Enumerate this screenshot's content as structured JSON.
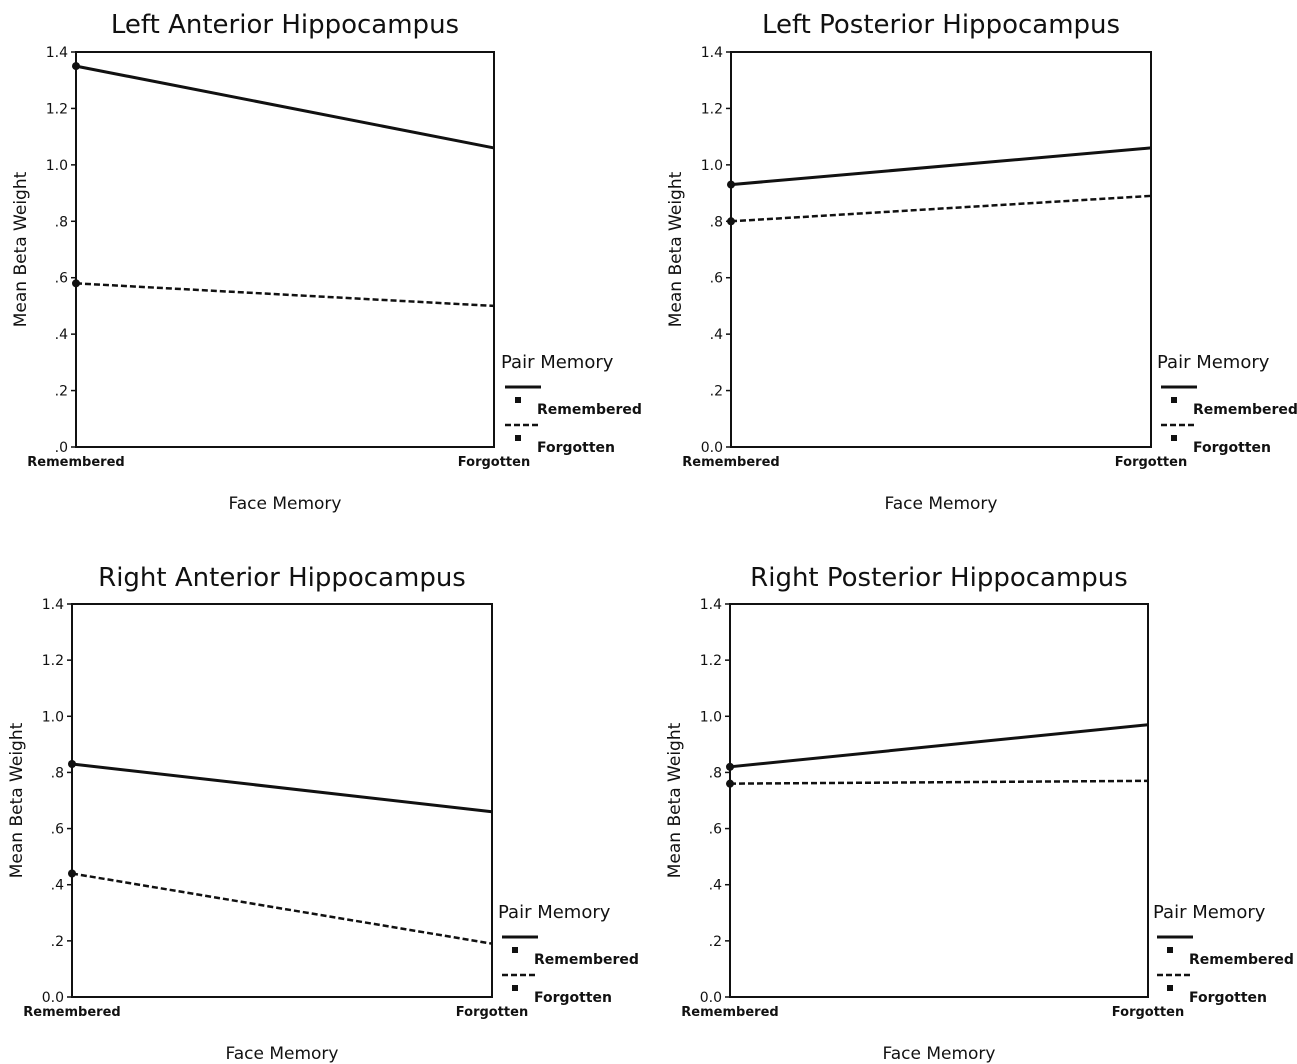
{
  "chart_data": [
    {
      "type": "line",
      "title": "Left Anterior Hippocampus",
      "xlabel": "Face Memory",
      "ylabel": "Mean Beta Weight",
      "categories": [
        "Remembered",
        "Forgotten"
      ],
      "ylim": [
        0,
        1.4
      ],
      "yticks": [
        ".0",
        ".2",
        ".4",
        ".6",
        ".8",
        "1.0",
        "1.2",
        "1.4"
      ],
      "series": [
        {
          "name": "Remembered",
          "values": [
            1.35,
            1.06
          ]
        },
        {
          "name": "Forgotten",
          "values": [
            0.58,
            0.5
          ]
        }
      ],
      "legend": {
        "title": "Pair Memory",
        "position": "right"
      }
    },
    {
      "type": "line",
      "title": "Left Posterior Hippocampus",
      "xlabel": "Face Memory",
      "ylabel": "Mean Beta Weight",
      "categories": [
        "Remembered",
        "Forgotten"
      ],
      "ylim": [
        0,
        1.4
      ],
      "yticks": [
        "0.0",
        ".2",
        ".4",
        ".6",
        ".8",
        "1.0",
        "1.2",
        "1.4"
      ],
      "series": [
        {
          "name": "Remembered",
          "values": [
            0.93,
            1.06
          ]
        },
        {
          "name": "Forgotten",
          "values": [
            0.8,
            0.89
          ]
        }
      ],
      "legend": {
        "title": "Pair Memory",
        "position": "right"
      }
    },
    {
      "type": "line",
      "title": "Right Anterior Hippocampus",
      "xlabel": "Face Memory",
      "ylabel": "Mean Beta Weight",
      "categories": [
        "Remembered",
        "Forgotten"
      ],
      "ylim": [
        0,
        1.4
      ],
      "yticks": [
        "0.0",
        ".2",
        ".4",
        ".6",
        ".8",
        "1.0",
        "1.2",
        "1.4"
      ],
      "series": [
        {
          "name": "Remembered",
          "values": [
            0.83,
            0.66
          ]
        },
        {
          "name": "Forgotten",
          "values": [
            0.44,
            0.19
          ]
        }
      ],
      "legend": {
        "title": "Pair Memory",
        "position": "right"
      }
    },
    {
      "type": "line",
      "title": "Right Posterior Hippocampus",
      "xlabel": "Face Memory",
      "ylabel": "Mean Beta Weight",
      "categories": [
        "Remembered",
        "Forgotten"
      ],
      "ylim": [
        0,
        1.4
      ],
      "yticks": [
        "0.0",
        ".2",
        ".4",
        ".6",
        ".8",
        "1.0",
        "1.2",
        "1.4"
      ],
      "series": [
        {
          "name": "Remembered",
          "values": [
            0.82,
            0.97
          ]
        },
        {
          "name": "Forgotten",
          "values": [
            0.76,
            0.77
          ]
        }
      ],
      "legend": {
        "title": "Pair Memory",
        "position": "right"
      }
    }
  ]
}
